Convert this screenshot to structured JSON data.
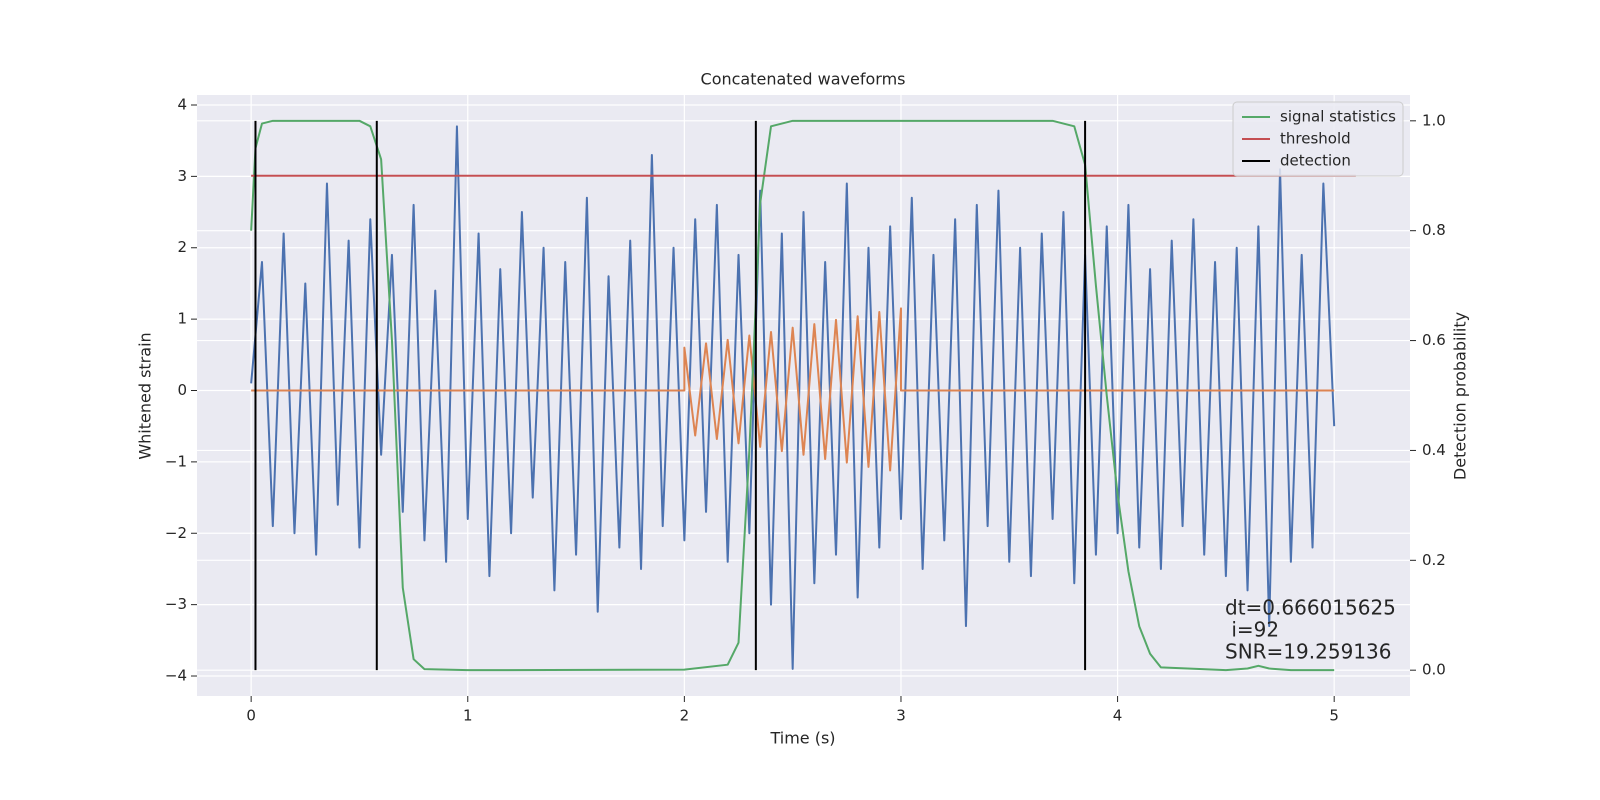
{
  "chart_data": {
    "type": "line",
    "title": "Concatenated waveforms",
    "xlabel": "Time (s)",
    "ylabel": "Whitened strain",
    "y2label": "Detection probability",
    "xlim": [
      -0.25,
      5.35
    ],
    "ylim": [
      -4.28,
      4.14
    ],
    "y2lim": [
      -0.047,
      1.047
    ],
    "xticks": [
      0,
      1,
      2,
      3,
      4,
      5
    ],
    "yticks": [
      {
        "value": -4,
        "label": "−4"
      },
      {
        "value": -3,
        "label": "−3"
      },
      {
        "value": -2,
        "label": "−2"
      },
      {
        "value": -1,
        "label": "−1"
      },
      0,
      1,
      2,
      3,
      4
    ],
    "y2ticks": [
      {
        "value": 0,
        "label": "0.0"
      },
      0.2,
      0.4,
      0.6,
      0.8,
      {
        "value": 1,
        "label": "1.0"
      }
    ],
    "grid": true,
    "legend": "upper right",
    "series": [
      {
        "color": "#4c72b0",
        "x": [
          0,
          0.05,
          0.1,
          0.15,
          0.2,
          0.25,
          0.3,
          0.35,
          0.4,
          0.45,
          0.5,
          0.55,
          0.6,
          0.65,
          0.7,
          0.75,
          0.8,
          0.85,
          0.9,
          0.95,
          1.0,
          1.05,
          1.1,
          1.15,
          1.2,
          1.25,
          1.3,
          1.35,
          1.4,
          1.45,
          1.5,
          1.55,
          1.6,
          1.65,
          1.7,
          1.75,
          1.8,
          1.85,
          1.9,
          1.95,
          2.0,
          2.05,
          2.1,
          2.15,
          2.2,
          2.25,
          2.3,
          2.35,
          2.4,
          2.45,
          2.5,
          2.55,
          2.6,
          2.65,
          2.7,
          2.75,
          2.8,
          2.85,
          2.9,
          2.95,
          3.0,
          3.05,
          3.1,
          3.15,
          3.2,
          3.25,
          3.3,
          3.35,
          3.4,
          3.45,
          3.5,
          3.55,
          3.6,
          3.65,
          3.7,
          3.75,
          3.8,
          3.85,
          3.9,
          3.95,
          4.0,
          4.05,
          4.1,
          4.15,
          4.2,
          4.25,
          4.3,
          4.35,
          4.4,
          4.45,
          4.5,
          4.55,
          4.6,
          4.65,
          4.7,
          4.75,
          4.8,
          4.85,
          4.9,
          4.95,
          5.0
        ],
        "values": [
          0.1,
          1.8,
          -1.9,
          2.2,
          -2.0,
          1.5,
          -2.3,
          2.9,
          -1.6,
          2.1,
          -2.2,
          2.4,
          -0.9,
          1.9,
          -1.7,
          2.6,
          -2.1,
          1.4,
          -2.4,
          3.7,
          -1.8,
          2.2,
          -2.6,
          1.7,
          -2.0,
          2.5,
          -1.5,
          2.0,
          -2.8,
          1.8,
          -2.3,
          2.7,
          -3.1,
          1.6,
          -2.2,
          2.1,
          -2.5,
          3.3,
          -1.9,
          2.0,
          -2.1,
          2.4,
          -1.7,
          2.6,
          -2.4,
          1.9,
          -2.0,
          2.8,
          -3.0,
          2.2,
          -3.9,
          2.5,
          -2.7,
          1.8,
          -2.3,
          2.9,
          -2.9,
          2.0,
          -2.2,
          2.3,
          -1.8,
          2.7,
          -2.5,
          1.9,
          -2.1,
          2.4,
          -3.3,
          2.6,
          -1.9,
          2.8,
          -2.4,
          2.0,
          -2.6,
          2.2,
          -1.8,
          2.5,
          -2.7,
          1.9,
          -2.3,
          2.3,
          -2.0,
          2.6,
          -2.2,
          1.7,
          -2.5,
          2.1,
          -1.9,
          2.4,
          -2.3,
          1.8,
          -2.6,
          2.0,
          -2.8,
          2.3,
          -3.3,
          3.1,
          -2.4,
          1.9,
          -2.2,
          2.9,
          -0.5
        ]
      },
      {
        "color": "#dd8452",
        "x": [
          0,
          2,
          2,
          2.05,
          2.1,
          2.15,
          2.2,
          2.25,
          2.3,
          2.35,
          2.4,
          2.45,
          2.5,
          2.55,
          2.6,
          2.65,
          2.7,
          2.75,
          2.8,
          2.85,
          2.9,
          2.95,
          3.0,
          3.0,
          5
        ],
        "values": [
          0,
          0,
          0.6,
          -0.63,
          0.66,
          -0.68,
          0.71,
          -0.74,
          0.77,
          -0.79,
          0.82,
          -0.85,
          0.88,
          -0.9,
          0.93,
          -0.96,
          0.99,
          -1.01,
          1.04,
          -1.07,
          1.1,
          -1.12,
          1.15,
          0,
          0
        ]
      },
      {
        "name": "signal statistics",
        "color": "#55a868",
        "axis": "y2",
        "x": [
          0,
          0.02,
          0.05,
          0.1,
          0.5,
          0.55,
          0.6,
          0.65,
          0.7,
          0.75,
          0.8,
          1.0,
          2.0,
          2.2,
          2.25,
          2.3,
          2.35,
          2.4,
          2.5,
          3.7,
          3.8,
          3.85,
          3.9,
          3.95,
          4.0,
          4.05,
          4.1,
          4.15,
          4.2,
          4.5,
          4.6,
          4.65,
          4.7,
          4.8,
          5.0
        ],
        "values": [
          0.8,
          0.95,
          0.995,
          1.0,
          1.0,
          0.99,
          0.93,
          0.6,
          0.15,
          0.02,
          0.002,
          0.0,
          0.001,
          0.01,
          0.05,
          0.4,
          0.85,
          0.99,
          1.0,
          1.0,
          0.99,
          0.92,
          0.7,
          0.5,
          0.32,
          0.18,
          0.08,
          0.03,
          0.005,
          0.0,
          0.003,
          0.008,
          0.003,
          0.0,
          0.0
        ]
      },
      {
        "name": "threshold",
        "color": "#c44e52",
        "axis": "y2",
        "x": [
          0,
          5.1
        ],
        "values": [
          0.9,
          0.9
        ]
      },
      {
        "name": "detection",
        "color": "#000000",
        "axis": "y2",
        "type": "vline",
        "x": [
          0.02,
          0.58,
          2.33,
          3.85
        ],
        "ymin": 0,
        "ymax": 1
      }
    ],
    "annotations": [
      "dt=0.666015625",
      " i=92",
      "SNR=19.259136"
    ]
  }
}
